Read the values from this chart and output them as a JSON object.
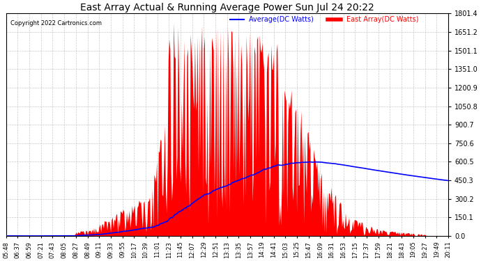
{
  "title": "East Array Actual & Running Average Power Sun Jul 24 20:22",
  "copyright": "Copyright 2022 Cartronics.com",
  "legend_avg": "Average(DC Watts)",
  "legend_east": "East Array(DC Watts)",
  "ymax": 1801.4,
  "ymin": 0.0,
  "yticks": [
    0.0,
    150.1,
    300.2,
    450.3,
    600.5,
    750.6,
    900.7,
    1050.8,
    1200.9,
    1351.0,
    1501.1,
    1651.2,
    1801.4
  ],
  "ytick_labels": [
    "0.0",
    "150.1",
    "300.2",
    "450.3",
    "600.5",
    "750.6",
    "900.7",
    "1050.8",
    "1200.9",
    "1351.0",
    "1501.1",
    "1651.2",
    "1801.4"
  ],
  "xtick_labels": [
    "05:48",
    "06:37",
    "06:59",
    "07:21",
    "07:43",
    "08:05",
    "08:27",
    "08:49",
    "09:11",
    "09:33",
    "09:55",
    "10:17",
    "10:39",
    "11:01",
    "11:23",
    "11:45",
    "12:07",
    "12:29",
    "12:51",
    "13:13",
    "13:35",
    "13:57",
    "14:19",
    "14:41",
    "15:03",
    "15:25",
    "15:47",
    "16:09",
    "16:31",
    "16:53",
    "17:15",
    "17:37",
    "17:59",
    "18:21",
    "18:43",
    "19:05",
    "19:27",
    "19:49",
    "20:11"
  ],
  "bg_color": "#ffffff",
  "grid_color": "#bbbbbb",
  "bar_color": "#ff0000",
  "avg_color": "#0000ff",
  "title_color": "#000000",
  "copyright_color": "#000000",
  "legend_avg_color": "#0000ff",
  "legend_east_color": "#ff0000",
  "figwidth": 6.9,
  "figheight": 3.75,
  "dpi": 100
}
